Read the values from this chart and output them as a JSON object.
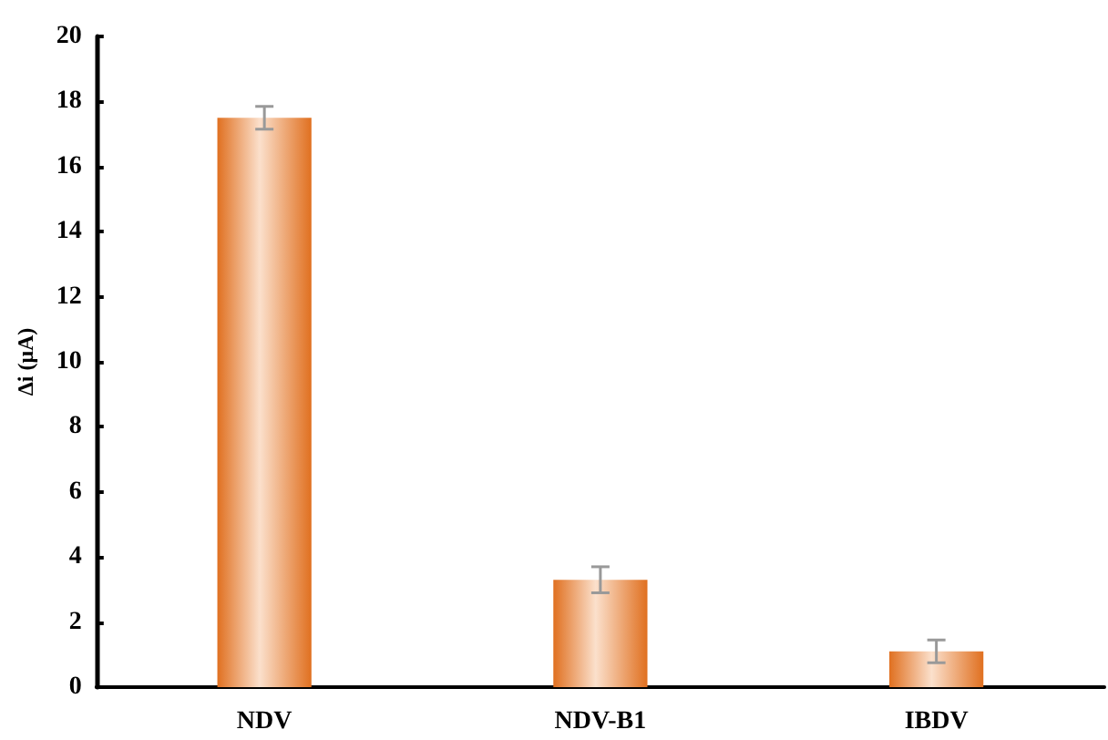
{
  "chart_data": {
    "type": "bar",
    "ylabel": "Δi (μA)",
    "categories": [
      "NDV",
      "NDV-B1",
      "IBDV"
    ],
    "values": [
      17.5,
      3.3,
      1.1
    ],
    "errors": [
      0.35,
      0.4,
      0.35
    ],
    "color": "#e07020",
    "ylim": [
      0,
      20
    ],
    "yticks": [
      0,
      2,
      4,
      6,
      8,
      10,
      12,
      14,
      16,
      18,
      20
    ],
    "grid": false
  }
}
